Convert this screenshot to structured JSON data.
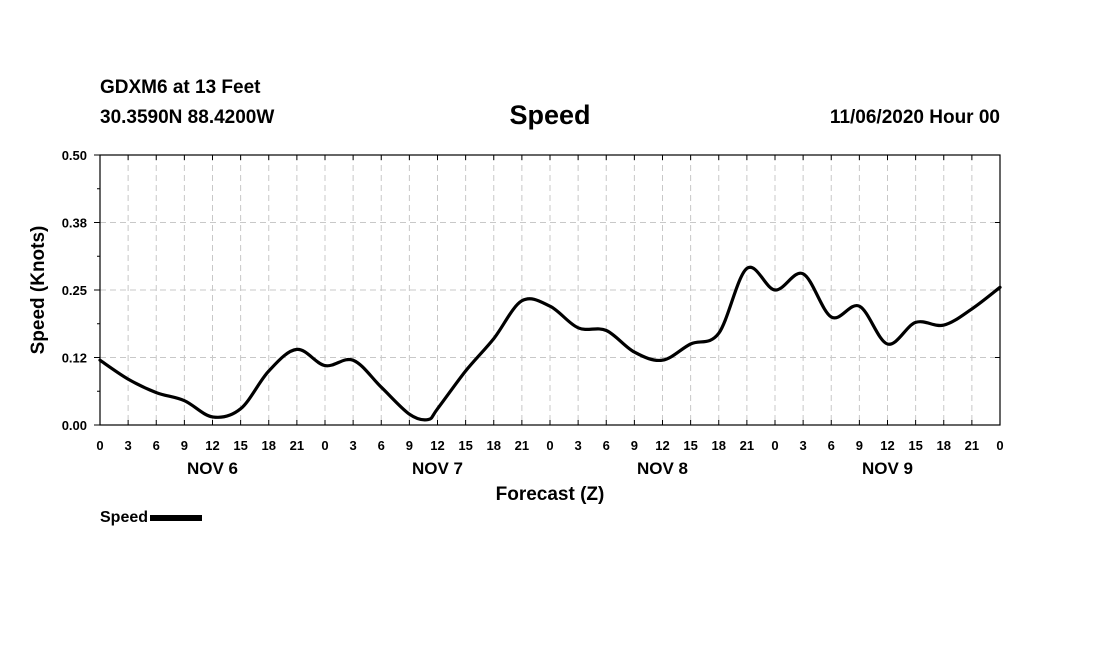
{
  "header": {
    "station": "GDXM6 at 13 Feet",
    "coordinates": "30.3590N 88.4200W",
    "title": "Speed",
    "run_time": "11/06/2020 Hour 00"
  },
  "legend": {
    "label": "Speed",
    "color": "#000000"
  },
  "chart_data": {
    "type": "line",
    "title": "Speed",
    "xlabel": "Forecast (Z)",
    "ylabel": "Speed (Knots)",
    "ylim": [
      0,
      0.5
    ],
    "y_ticks": [
      "0.00",
      "0.12",
      "0.25",
      "0.38",
      "0.50"
    ],
    "x_range_hours": [
      0,
      96
    ],
    "x_tick_labels": [
      "0",
      "3",
      "6",
      "9",
      "12",
      "15",
      "18",
      "21",
      "0",
      "3",
      "6",
      "9",
      "12",
      "15",
      "18",
      "21",
      "0",
      "3",
      "6",
      "9",
      "12",
      "15",
      "18",
      "21",
      "0",
      "3",
      "6",
      "9",
      "12",
      "15",
      "18",
      "21",
      "0"
    ],
    "day_labels": [
      "NOV 6",
      "NOV 7",
      "NOV 8",
      "NOV 9"
    ],
    "grid": true,
    "series": [
      {
        "name": "Speed",
        "color": "#000000",
        "x": [
          0,
          3,
          6,
          9,
          12,
          15,
          18,
          21,
          24,
          27,
          30,
          33,
          35,
          36,
          39,
          42,
          45,
          48,
          51,
          54,
          57,
          60,
          63,
          66,
          69,
          72,
          75,
          78,
          81,
          84,
          87,
          90,
          93,
          96
        ],
        "y": [
          0.12,
          0.085,
          0.06,
          0.045,
          0.015,
          0.03,
          0.1,
          0.14,
          0.11,
          0.12,
          0.07,
          0.02,
          0.01,
          0.03,
          0.1,
          0.16,
          0.23,
          0.22,
          0.18,
          0.175,
          0.135,
          0.12,
          0.15,
          0.17,
          0.29,
          0.25,
          0.28,
          0.2,
          0.22,
          0.15,
          0.19,
          0.185,
          0.215,
          0.255
        ]
      }
    ]
  }
}
